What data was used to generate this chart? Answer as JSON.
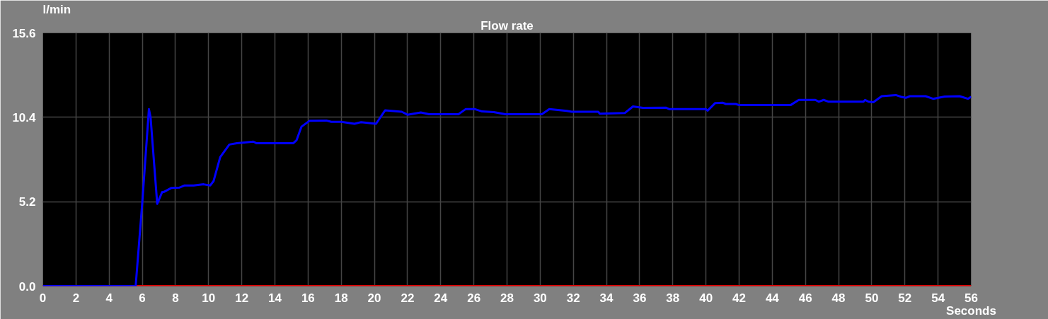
{
  "chart_data": {
    "type": "line",
    "title": "Flow rate",
    "ylabel": "l/min",
    "xlabel": "Seconds",
    "xlim": [
      0,
      56
    ],
    "ylim": [
      0,
      15.6
    ],
    "xticks": [
      0,
      2,
      4,
      6,
      8,
      10,
      12,
      14,
      16,
      18,
      20,
      22,
      24,
      26,
      28,
      30,
      32,
      34,
      36,
      38,
      40,
      42,
      44,
      46,
      48,
      50,
      52,
      54,
      56
    ],
    "yticks": [
      {
        "value": 0,
        "label": "0.0"
      },
      5.2,
      10.4,
      15.6
    ],
    "grid": true,
    "line_style": "solid",
    "series": [
      {
        "color": "#e00000",
        "x": [
          0,
          56
        ],
        "values": [
          0,
          0
        ]
      },
      {
        "color": "#0000ff",
        "x": [
          0,
          5.6,
          6.0,
          6.4,
          6.5,
          6.9,
          7.2,
          7.3,
          7.76,
          8.25,
          8.55,
          9.1,
          9.7,
          10.1,
          10.3,
          10.7,
          11.25,
          11.7,
          12.7,
          12.9,
          14.8,
          15.1,
          15.3,
          15.6,
          16.1,
          17.1,
          17.4,
          18.0,
          18.8,
          19.2,
          20.1,
          20.65,
          21.65,
          22.0,
          22.8,
          23.3,
          25.07,
          25.5,
          26.07,
          26.5,
          27.2,
          27.9,
          30.1,
          30.55,
          31.6,
          31.9,
          33.5,
          33.6,
          35.1,
          35.6,
          36.2,
          37.6,
          37.8,
          40.0,
          40.1,
          40.55,
          41.0,
          41.2,
          41.8,
          42.0,
          45.1,
          45.6,
          46.6,
          46.8,
          47.1,
          47.4,
          49.5,
          49.6,
          49.8,
          50.1,
          50.6,
          51.45,
          51.75,
          52.05,
          52.3,
          53.25,
          53.7,
          54.4,
          55.3,
          55.8,
          56
        ],
        "values": [
          0,
          0,
          5.15,
          10.9,
          10.4,
          5.07,
          5.8,
          5.8,
          6.05,
          6.07,
          6.2,
          6.2,
          6.27,
          6.2,
          6.47,
          7.95,
          8.72,
          8.8,
          8.9,
          8.8,
          8.8,
          8.8,
          8.98,
          9.82,
          10.19,
          10.2,
          10.12,
          10.12,
          10.0,
          10.1,
          10.0,
          10.83,
          10.74,
          10.56,
          10.7,
          10.59,
          10.59,
          10.9,
          10.9,
          10.76,
          10.72,
          10.59,
          10.59,
          10.9,
          10.8,
          10.74,
          10.74,
          10.62,
          10.66,
          11.07,
          10.98,
          10.99,
          10.9,
          10.9,
          10.81,
          11.27,
          11.3,
          11.22,
          11.22,
          11.15,
          11.15,
          11.47,
          11.47,
          11.36,
          11.47,
          11.36,
          11.36,
          11.47,
          11.36,
          11.33,
          11.7,
          11.77,
          11.67,
          11.6,
          11.7,
          11.7,
          11.54,
          11.68,
          11.7,
          11.54,
          11.67
        ]
      }
    ]
  }
}
